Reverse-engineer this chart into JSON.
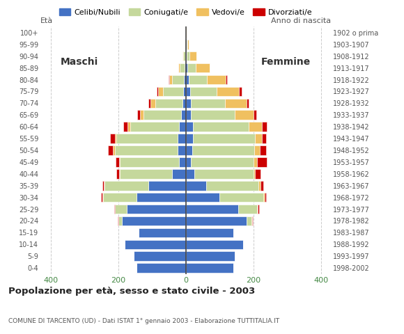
{
  "age_groups": [
    "0-4",
    "5-9",
    "10-14",
    "15-19",
    "20-24",
    "25-29",
    "30-34",
    "35-39",
    "40-44",
    "45-49",
    "50-54",
    "55-59",
    "60-64",
    "65-69",
    "70-74",
    "75-79",
    "80-84",
    "85-89",
    "90-94",
    "95-99",
    "100+"
  ],
  "birth_years": [
    "1998-2002",
    "1993-1997",
    "1988-1992",
    "1983-1987",
    "1978-1982",
    "1973-1977",
    "1968-1972",
    "1963-1967",
    "1958-1962",
    "1953-1957",
    "1948-1952",
    "1943-1947",
    "1938-1942",
    "1933-1937",
    "1928-1932",
    "1923-1927",
    "1918-1922",
    "1913-1917",
    "1908-1912",
    "1903-1907",
    "1902 o prima"
  ],
  "males": {
    "celibe": [
      145,
      155,
      180,
      140,
      190,
      175,
      145,
      110,
      40,
      20,
      25,
      25,
      20,
      15,
      10,
      7,
      5,
      3,
      2,
      1,
      0
    ],
    "coniugato": [
      0,
      0,
      0,
      0,
      10,
      35,
      100,
      130,
      155,
      175,
      185,
      180,
      145,
      110,
      80,
      60,
      35,
      15,
      5,
      2,
      0
    ],
    "vedovo": [
      0,
      0,
      0,
      0,
      0,
      0,
      1,
      2,
      3,
      3,
      5,
      5,
      8,
      10,
      15,
      15,
      10,
      5,
      2,
      0,
      0
    ],
    "divorziato": [
      0,
      0,
      0,
      0,
      1,
      2,
      5,
      5,
      8,
      10,
      15,
      15,
      12,
      8,
      5,
      5,
      2,
      0,
      0,
      0,
      0
    ]
  },
  "females": {
    "celibe": [
      140,
      145,
      170,
      140,
      180,
      155,
      100,
      60,
      25,
      15,
      18,
      20,
      20,
      15,
      15,
      12,
      8,
      5,
      3,
      2,
      1
    ],
    "coniugato": [
      0,
      0,
      0,
      0,
      15,
      55,
      130,
      155,
      175,
      185,
      185,
      185,
      165,
      130,
      100,
      80,
      55,
      25,
      8,
      2,
      0
    ],
    "vedovo": [
      0,
      0,
      0,
      0,
      1,
      2,
      3,
      5,
      5,
      10,
      15,
      20,
      40,
      55,
      65,
      65,
      55,
      40,
      20,
      5,
      1
    ],
    "divorziato": [
      0,
      0,
      0,
      0,
      2,
      5,
      5,
      10,
      15,
      30,
      20,
      12,
      15,
      8,
      5,
      8,
      3,
      0,
      0,
      0,
      0
    ]
  },
  "colors": {
    "celibe": "#4472c4",
    "coniugato": "#c5d89c",
    "vedovo": "#f0c060",
    "divorziato": "#cc0000"
  },
  "title": "Popolazione per età, sesso e stato civile - 2003",
  "subtitle": "COMUNE DI TARCENTO (UD) - Dati ISTAT 1° gennaio 2003 - Elaborazione TUTTITALIA.IT",
  "legend_labels": [
    "Celibi/Nubili",
    "Coniugati/e",
    "Vedovi/e",
    "Divorziati/e"
  ],
  "xlim": 430,
  "label_maschi": "Maschi",
  "label_femmine": "Femmine",
  "ylabel_left": "Età",
  "ylabel_right": "Anno di nascita",
  "background_color": "#ffffff",
  "grid_color": "#cccccc",
  "xtick_color": "#448844"
}
